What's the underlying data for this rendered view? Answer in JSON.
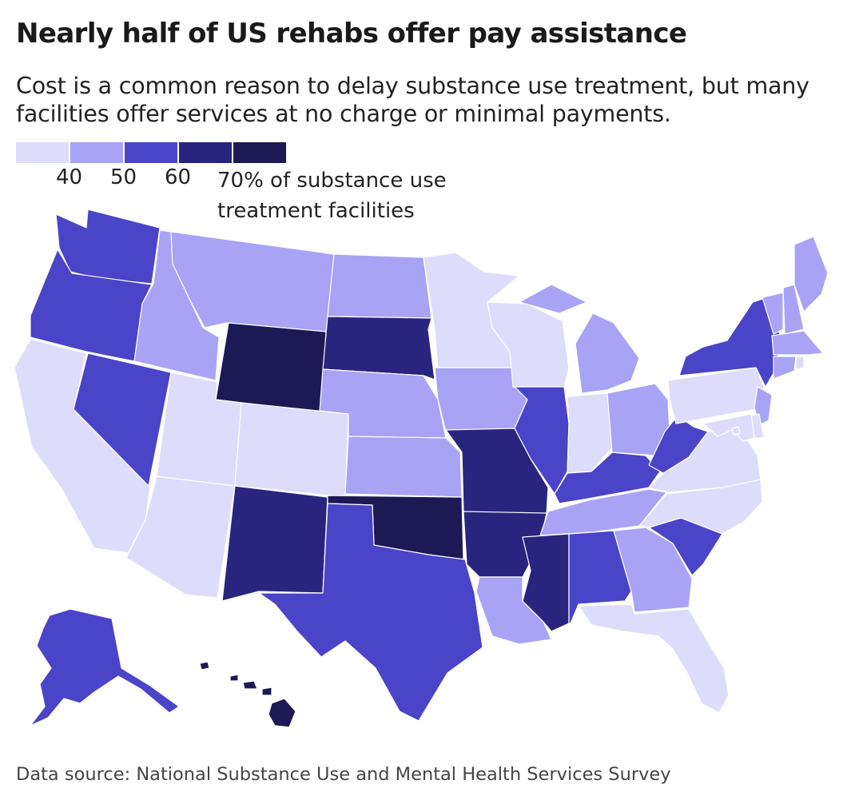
{
  "title": "Nearly half of US rehabs offer pay assistance",
  "subtitle": "Cost is a common reason to delay substance use treatment, but many facilities offer services at no charge or minimal payments.",
  "legend": {
    "colors": [
      "#dedcfb",
      "#a8a3f5",
      "#4a44c8",
      "#29257f",
      "#1c1955"
    ],
    "tick_labels": [
      "40",
      "50",
      "60"
    ],
    "unit_label": "70% of substance use treatment facilities"
  },
  "source": "Data source: National Substance Use and Mental Health Services Survey",
  "map_data": {
    "type": "choropleth",
    "variable": "% of substance use treatment facilities offering pay assistance",
    "bins": [
      "under 40",
      "40–50",
      "50–60",
      "60–70",
      "70 and over"
    ],
    "states": {
      "WA": 3,
      "OR": 3,
      "CA": 1,
      "NV": 3,
      "ID": 2,
      "MT": 2,
      "WY": 5,
      "UT": 1,
      "CO": 1,
      "AZ": 1,
      "NM": 4,
      "ND": 2,
      "SD": 4,
      "NE": 2,
      "KS": 2,
      "OK": 5,
      "TX": 3,
      "MN": 1,
      "IA": 2,
      "MO": 4,
      "AR": 4,
      "LA": 2,
      "WI": 1,
      "IL": 3,
      "MI": 2,
      "IN": 1,
      "OH": 2,
      "KY": 3,
      "TN": 2,
      "MS": 4,
      "AL": 3,
      "GA": 2,
      "FL": 1,
      "SC": 3,
      "NC": 1,
      "VA": 1,
      "WV": 3,
      "PA": 1,
      "NY": 3,
      "VT": 2,
      "NH": 2,
      "ME": 2,
      "MA": 2,
      "CT": 2,
      "RI": 1,
      "NJ": 2,
      "DE": 1,
      "MD": 1,
      "DC": 1,
      "AK": 3,
      "HI": 5
    }
  }
}
